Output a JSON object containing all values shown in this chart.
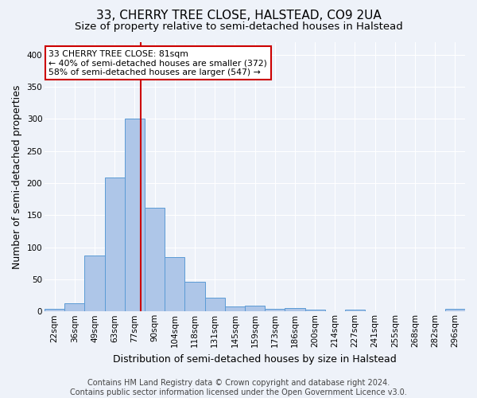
{
  "title": "33, CHERRY TREE CLOSE, HALSTEAD, CO9 2UA",
  "subtitle": "Size of property relative to semi-detached houses in Halstead",
  "xlabel": "Distribution of semi-detached houses by size in Halstead",
  "ylabel": "Number of semi-detached properties",
  "footer_line1": "Contains HM Land Registry data © Crown copyright and database right 2024.",
  "footer_line2": "Contains public sector information licensed under the Open Government Licence v3.0.",
  "bin_labels": [
    "22sqm",
    "36sqm",
    "49sqm",
    "63sqm",
    "77sqm",
    "90sqm",
    "104sqm",
    "118sqm",
    "131sqm",
    "145sqm",
    "159sqm",
    "173sqm",
    "186sqm",
    "200sqm",
    "214sqm",
    "227sqm",
    "241sqm",
    "255sqm",
    "268sqm",
    "282sqm",
    "296sqm"
  ],
  "bin_values": [
    4,
    13,
    87,
    209,
    300,
    162,
    85,
    46,
    22,
    8,
    9,
    4,
    5,
    3,
    0,
    3,
    0,
    0,
    0,
    0,
    4
  ],
  "bar_color": "#aec6e8",
  "bar_edge_color": "#5b9bd5",
  "vline_color": "#cc0000",
  "annotation_text": "33 CHERRY TREE CLOSE: 81sqm\n← 40% of semi-detached houses are smaller (372)\n58% of semi-detached houses are larger (547) →",
  "annotation_box_color": "#ffffff",
  "annotation_box_edge": "#cc0000",
  "ylim": [
    0,
    420
  ],
  "yticks": [
    0,
    50,
    100,
    150,
    200,
    250,
    300,
    350,
    400
  ],
  "background_color": "#eef2f9",
  "grid_color": "#ffffff",
  "title_fontsize": 11,
  "subtitle_fontsize": 9.5,
  "axis_label_fontsize": 9,
  "tick_fontsize": 7.5,
  "footer_fontsize": 7
}
